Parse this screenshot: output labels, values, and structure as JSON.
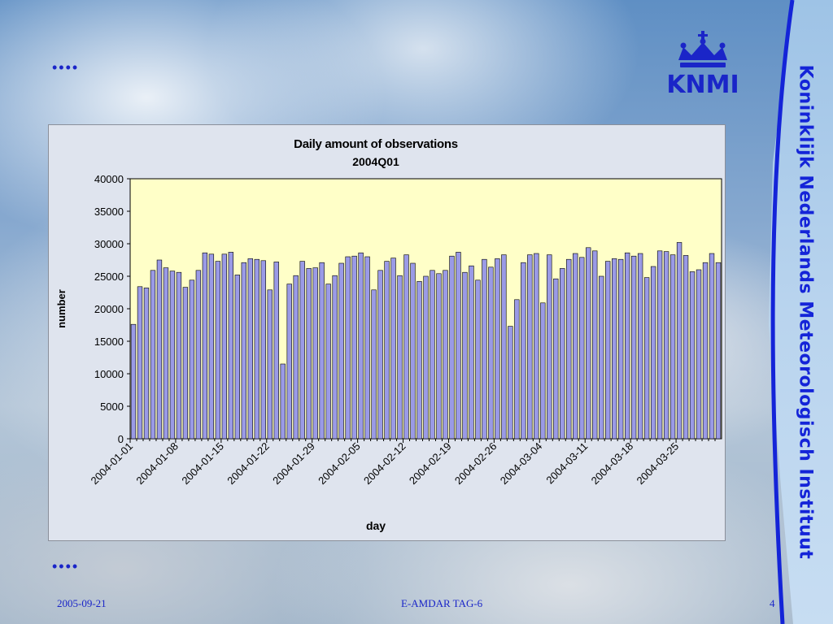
{
  "slide": {
    "institute_name": "Koninklijk Nederlands Meteorologisch Instituut",
    "logo_text": "KNMI",
    "bullet_dots": "••••",
    "footer_date": "2005-09-21",
    "footer_title": "E-AMDAR TAG-6",
    "page_number": "4"
  },
  "colors": {
    "accent": "#1a25c8",
    "plot_bg": "#ffffc8",
    "bar_fill": "#9a9ae6",
    "chart_bg": "#dfe4ee"
  },
  "chart_data": {
    "type": "bar",
    "title": "Daily amount of observations",
    "subtitle": "2004Q01",
    "xlabel": "day",
    "ylabel": "number",
    "ylim": [
      0,
      40000
    ],
    "yticks": [
      0,
      5000,
      10000,
      15000,
      20000,
      25000,
      30000,
      35000,
      40000
    ],
    "grid": false,
    "legend": "none",
    "xtick_labels": [
      "2004-01-01",
      "2004-01-08",
      "2004-01-15",
      "2004-01-22",
      "2004-01-29",
      "2004-02-05",
      "2004-02-12",
      "2004-02-19",
      "2004-02-26",
      "2004-03-04",
      "2004-03-11",
      "2004-03-18",
      "2004-03-25"
    ],
    "x_start": "2004-01-01",
    "values": [
      17600,
      23400,
      23200,
      25900,
      27500,
      26300,
      25800,
      25600,
      23300,
      24400,
      25900,
      28600,
      28400,
      27300,
      28400,
      28700,
      25200,
      27100,
      27700,
      27600,
      27400,
      22900,
      27200,
      11500,
      23800,
      25100,
      27300,
      26200,
      26300,
      27100,
      23800,
      25100,
      27000,
      28000,
      28100,
      28600,
      28000,
      22900,
      25900,
      27300,
      27800,
      25100,
      28300,
      27000,
      24200,
      25000,
      25900,
      25400,
      25900,
      28100,
      28700,
      25600,
      26600,
      24400,
      27600,
      26400,
      27700,
      28300,
      17300,
      21400,
      27100,
      28300,
      28500,
      20900,
      28300,
      24600,
      26200,
      27600,
      28500,
      27900,
      29400,
      28900,
      25000,
      27300,
      27700,
      27600,
      28600,
      28100,
      28500,
      24800,
      26500,
      28900,
      28800,
      28300,
      30200,
      28200,
      25700,
      26000,
      27100,
      28500,
      27100
    ]
  }
}
